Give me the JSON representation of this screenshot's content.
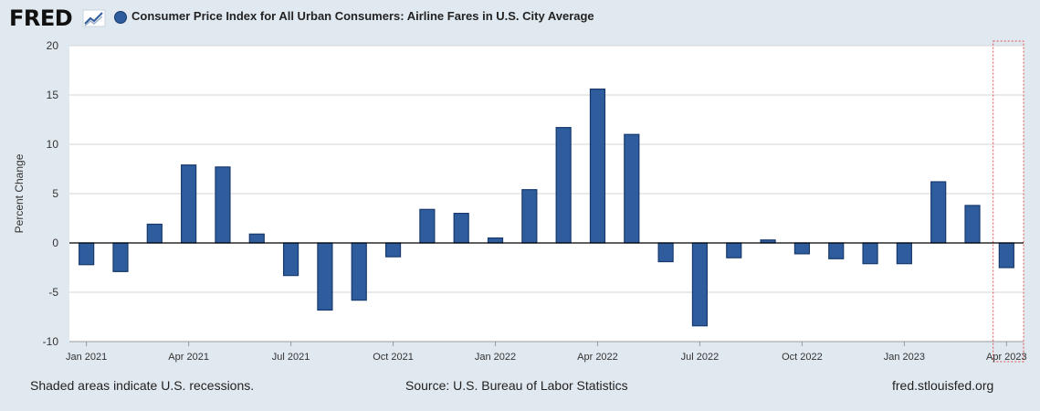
{
  "header": {
    "logo_text": "FRED",
    "series_title": "Consumer Price Index for All Urban Consumers: Airline Fares in U.S. City Average",
    "series_color": "#2e5c9c"
  },
  "footer": {
    "recessions_note": "Shaded areas indicate U.S. recessions.",
    "source": "Source: U.S. Bureau of Labor Statistics",
    "site": "fred.stlouisfed.org"
  },
  "chart_data": {
    "type": "bar",
    "title": "Consumer Price Index for All Urban Consumers: Airline Fares in U.S. City Average",
    "xlabel": "",
    "ylabel": "Percent Change",
    "ylim": [
      -10,
      20
    ],
    "yticks": [
      -10,
      -5,
      0,
      5,
      10,
      15,
      20
    ],
    "grid": true,
    "categories": [
      "Jan 2021",
      "Feb 2021",
      "Mar 2021",
      "Apr 2021",
      "May 2021",
      "Jun 2021",
      "Jul 2021",
      "Aug 2021",
      "Sep 2021",
      "Oct 2021",
      "Nov 2021",
      "Dec 2021",
      "Jan 2022",
      "Feb 2022",
      "Mar 2022",
      "Apr 2022",
      "May 2022",
      "Jun 2022",
      "Jul 2022",
      "Aug 2022",
      "Sep 2022",
      "Oct 2022",
      "Nov 2022",
      "Dec 2022",
      "Jan 2023",
      "Feb 2023",
      "Mar 2023",
      "Apr 2023"
    ],
    "tick_labels": [
      "Jan 2021",
      "Apr 2021",
      "Jul 2021",
      "Oct 2021",
      "Jan 2022",
      "Apr 2022",
      "Jul 2022",
      "Oct 2022",
      "Jan 2023",
      "Apr 2023"
    ],
    "series": [
      {
        "name": "Consumer Price Index for All Urban Consumers: Airline Fares in U.S. City Average",
        "color": "#2e5c9c",
        "values": [
          -2.2,
          -2.9,
          1.9,
          7.9,
          7.7,
          0.9,
          -3.3,
          -6.8,
          -5.8,
          -1.4,
          3.4,
          3.0,
          0.5,
          5.4,
          11.7,
          15.6,
          11.0,
          -1.9,
          -8.4,
          -1.5,
          0.3,
          -1.1,
          -1.6,
          -2.1,
          -2.1,
          6.2,
          3.8,
          -2.5
        ]
      }
    ],
    "highlight_category": "Apr 2023"
  }
}
